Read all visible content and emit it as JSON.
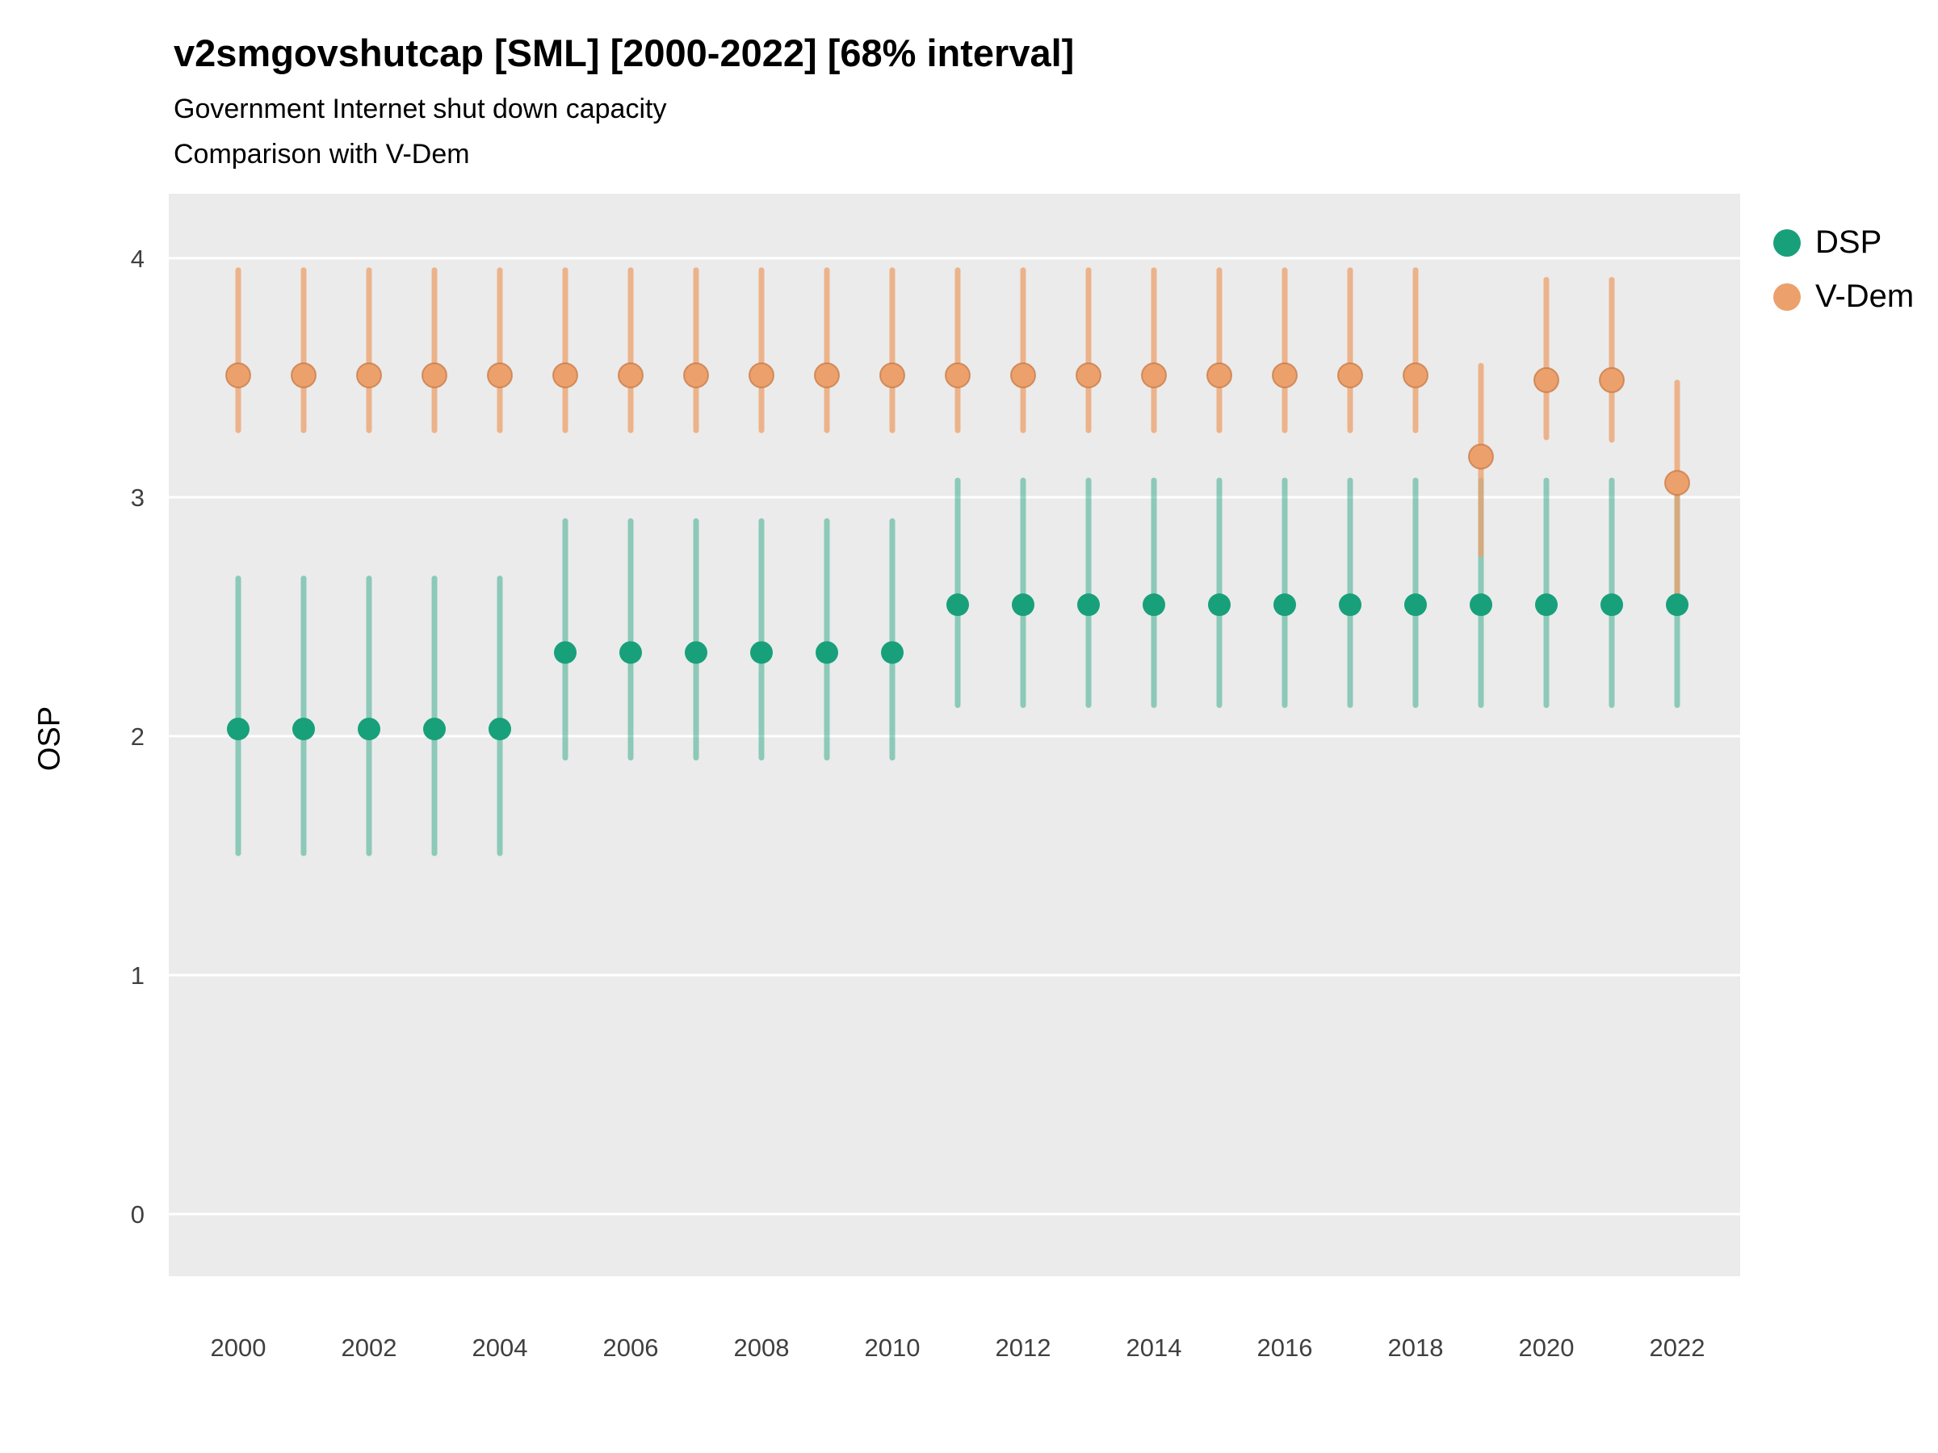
{
  "chart_data": {
    "type": "pointrange",
    "title": "v2smgovshutcap [SML] [2000-2022] [68% interval]",
    "subtitle1": "Government Internet shut down capacity",
    "subtitle2": "Comparison with V-Dem",
    "xlabel": "",
    "ylabel": "OSP",
    "interval": "68%",
    "ylim": [
      -0.26,
      4.27
    ],
    "y_ticks": [
      0,
      1,
      2,
      3,
      4
    ],
    "x_ticks": [
      2000,
      2002,
      2004,
      2006,
      2008,
      2010,
      2012,
      2014,
      2016,
      2018,
      2020,
      2022
    ],
    "x": [
      2000,
      2001,
      2002,
      2003,
      2004,
      2005,
      2006,
      2007,
      2008,
      2009,
      2010,
      2011,
      2012,
      2013,
      2014,
      2015,
      2016,
      2017,
      2018,
      2019,
      2020,
      2021,
      2022
    ],
    "legend_position": "right",
    "grid": "horizontal-major-only",
    "series": [
      {
        "name": "DSP",
        "color": "#18A07B",
        "interval_color": "rgba(24,160,123,0.45)",
        "points": [
          2.03,
          2.03,
          2.03,
          2.03,
          2.03,
          2.35,
          2.35,
          2.35,
          2.35,
          2.35,
          2.35,
          2.55,
          2.55,
          2.55,
          2.55,
          2.55,
          2.55,
          2.55,
          2.55,
          2.55,
          2.55,
          2.55,
          2.55
        ],
        "lower": [
          1.51,
          1.51,
          1.51,
          1.51,
          1.51,
          1.91,
          1.91,
          1.91,
          1.91,
          1.91,
          1.91,
          2.13,
          2.13,
          2.13,
          2.13,
          2.13,
          2.13,
          2.13,
          2.13,
          2.13,
          2.13,
          2.13,
          2.13
        ],
        "upper": [
          2.66,
          2.66,
          2.66,
          2.66,
          2.66,
          2.9,
          2.9,
          2.9,
          2.9,
          2.9,
          2.9,
          3.07,
          3.07,
          3.07,
          3.07,
          3.07,
          3.07,
          3.07,
          3.07,
          3.07,
          3.07,
          3.07,
          3.07
        ]
      },
      {
        "name": "V-Dem",
        "color": "#ECA06B",
        "point_stroke": "rgba(196,117,62,0.7)",
        "interval_color": "rgba(236,160,107,0.75)",
        "points": [
          3.51,
          3.51,
          3.51,
          3.51,
          3.51,
          3.51,
          3.51,
          3.51,
          3.51,
          3.51,
          3.51,
          3.51,
          3.51,
          3.51,
          3.51,
          3.51,
          3.51,
          3.51,
          3.51,
          3.17,
          3.49,
          3.49,
          3.06
        ],
        "lower": [
          3.28,
          3.28,
          3.28,
          3.28,
          3.28,
          3.28,
          3.28,
          3.28,
          3.28,
          3.28,
          3.28,
          3.28,
          3.28,
          3.28,
          3.28,
          3.28,
          3.28,
          3.28,
          3.28,
          2.76,
          3.25,
          3.24,
          2.6
        ],
        "upper": [
          3.95,
          3.95,
          3.95,
          3.95,
          3.95,
          3.95,
          3.95,
          3.95,
          3.95,
          3.95,
          3.95,
          3.95,
          3.95,
          3.95,
          3.95,
          3.95,
          3.95,
          3.95,
          3.95,
          3.55,
          3.91,
          3.91,
          3.48
        ]
      }
    ],
    "colors": {
      "panel": "#EBEBEB",
      "grid_line": "#FFFFFF",
      "tick_text": "#404040",
      "title_text": "#000000"
    }
  }
}
